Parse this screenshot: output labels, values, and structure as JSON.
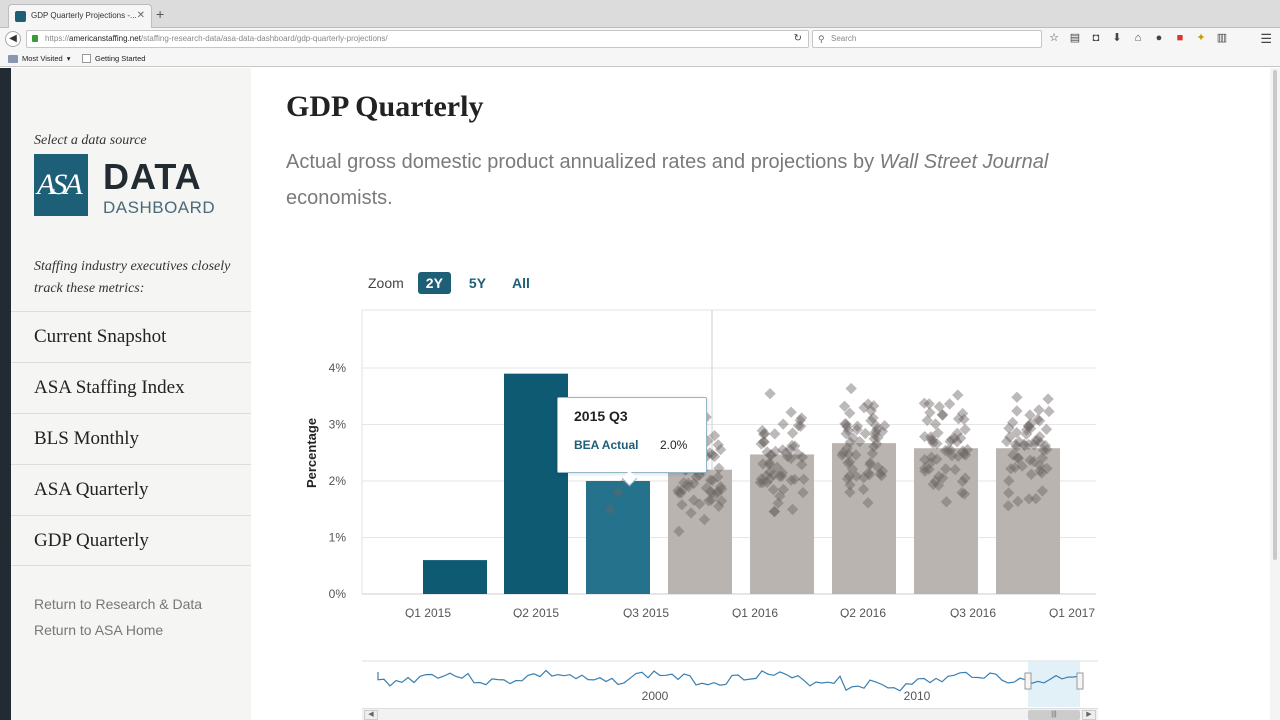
{
  "browser": {
    "tab_title": "GDP Quarterly Projections -...",
    "url_prefix": "https://",
    "url_host": "americanstaffing.net",
    "url_path": "/staffing-research-data/asa-data-dashboard/gdp-quarterly-projections/",
    "search_placeholder": "Search",
    "bookmarks": [
      "Most Visited",
      "Getting Started"
    ]
  },
  "sidebar": {
    "select_label": "Select a data source",
    "logo_mark": "ASA",
    "logo_data": "DATA",
    "logo_dashboard": "DASHBOARD",
    "note": "Staffing industry executives closely track these metrics:",
    "nav": [
      {
        "label": "Current Snapshot"
      },
      {
        "label": "ASA Staffing Index"
      },
      {
        "label": "BLS Monthly"
      },
      {
        "label": "ASA Quarterly"
      },
      {
        "label": "GDP Quarterly"
      }
    ],
    "links": [
      {
        "label": "Return to Research & Data"
      },
      {
        "label": "Return to ASA Home"
      }
    ]
  },
  "main": {
    "title": "GDP Quarterly",
    "subtitle_pre": "Actual gross domestic product annualized rates and projections by ",
    "subtitle_em": "Wall Street Journal",
    "subtitle_post": " economists.",
    "zoom_label": "Zoom",
    "zoom_options": [
      "2Y",
      "5Y",
      "All"
    ],
    "tooltip": {
      "title": "2015 Q3",
      "series": "BEA Actual",
      "value": "2.0%"
    },
    "navigator_labels": [
      "2000",
      "2010"
    ]
  },
  "colors": {
    "actual": "#0e5a73",
    "actual_highlight": "#24728c",
    "projection": "#bab4b1",
    "point": "#6b6461"
  },
  "chart_data": {
    "type": "bar",
    "ylabel": "Percentage",
    "y_ticks": [
      "0%",
      "1%",
      "2%",
      "3%",
      "4%"
    ],
    "ylim": [
      0,
      4.8
    ],
    "x_tick_labels": [
      "Q1 2015",
      "Q2 2015",
      "Q3 2015",
      "Q1 2016",
      "Q2 2016",
      "Q3 2016",
      "Q1 2017"
    ],
    "categories": [
      "2015 Q1",
      "2015 Q2",
      "2015 Q3",
      "2015 Q4",
      "2016 Q1",
      "2016 Q2",
      "2016 Q3",
      "2016 Q4"
    ],
    "series": [
      {
        "name": "BEA Actual",
        "values": [
          0.6,
          3.9,
          2.0,
          null,
          null,
          null,
          null,
          null
        ]
      },
      {
        "values": [
          null,
          null,
          null,
          2.2,
          2.47,
          2.67,
          2.58,
          2.58
        ]
      }
    ],
    "highlighted": "2015 Q3",
    "grid": true
  }
}
